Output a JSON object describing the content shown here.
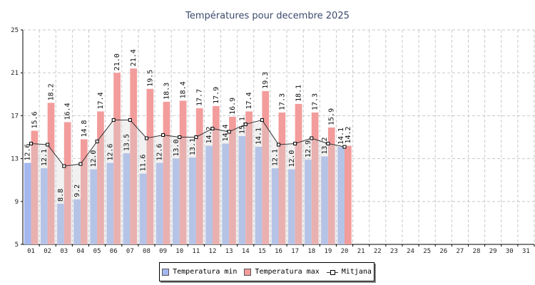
{
  "chart_data": {
    "type": "bar",
    "title": "Températures pour decembre 2025",
    "categories": [
      "01",
      "02",
      "03",
      "04",
      "05",
      "06",
      "07",
      "08",
      "09",
      "10",
      "11",
      "12",
      "13",
      "14",
      "15",
      "16",
      "17",
      "18",
      "19",
      "20",
      "21",
      "22",
      "23",
      "24",
      "25",
      "26",
      "27",
      "28",
      "29",
      "30",
      "31"
    ],
    "series": [
      {
        "name": "Temperatura min",
        "type": "bar",
        "color": "#a4b8ee",
        "values": [
          12.6,
          12.1,
          8.8,
          9.2,
          12.0,
          12.6,
          13.5,
          11.6,
          12.6,
          13.0,
          13.1,
          14.2,
          14.4,
          15.1,
          14.1,
          12.1,
          12.0,
          12.9,
          13.2,
          14.1,
          null,
          null,
          null,
          null,
          null,
          null,
          null,
          null,
          null,
          null,
          null
        ]
      },
      {
        "name": "Temperatura max",
        "type": "bar",
        "color": "#f39c9c",
        "values": [
          15.6,
          18.2,
          16.4,
          14.8,
          17.4,
          21.0,
          21.4,
          19.5,
          18.3,
          18.4,
          17.7,
          17.9,
          16.9,
          17.4,
          19.3,
          17.3,
          18.1,
          17.3,
          15.9,
          14.2,
          null,
          null,
          null,
          null,
          null,
          null,
          null,
          null,
          null,
          null,
          null
        ]
      },
      {
        "name": "Mitjana",
        "type": "line",
        "color": "#333333",
        "values": [
          14.4,
          14.3,
          12.3,
          12.5,
          14.6,
          16.6,
          16.6,
          14.9,
          15.2,
          15.0,
          15.0,
          15.8,
          15.5,
          16.2,
          16.6,
          14.3,
          14.4,
          14.9,
          14.4,
          14.1,
          null,
          null,
          null,
          null,
          null,
          null,
          null,
          null,
          null,
          null,
          null
        ]
      }
    ],
    "ylim": [
      5,
      25
    ],
    "yticks": [
      5,
      9,
      13,
      17,
      21,
      25
    ],
    "grid": true,
    "legend_position": "bottom-center"
  }
}
